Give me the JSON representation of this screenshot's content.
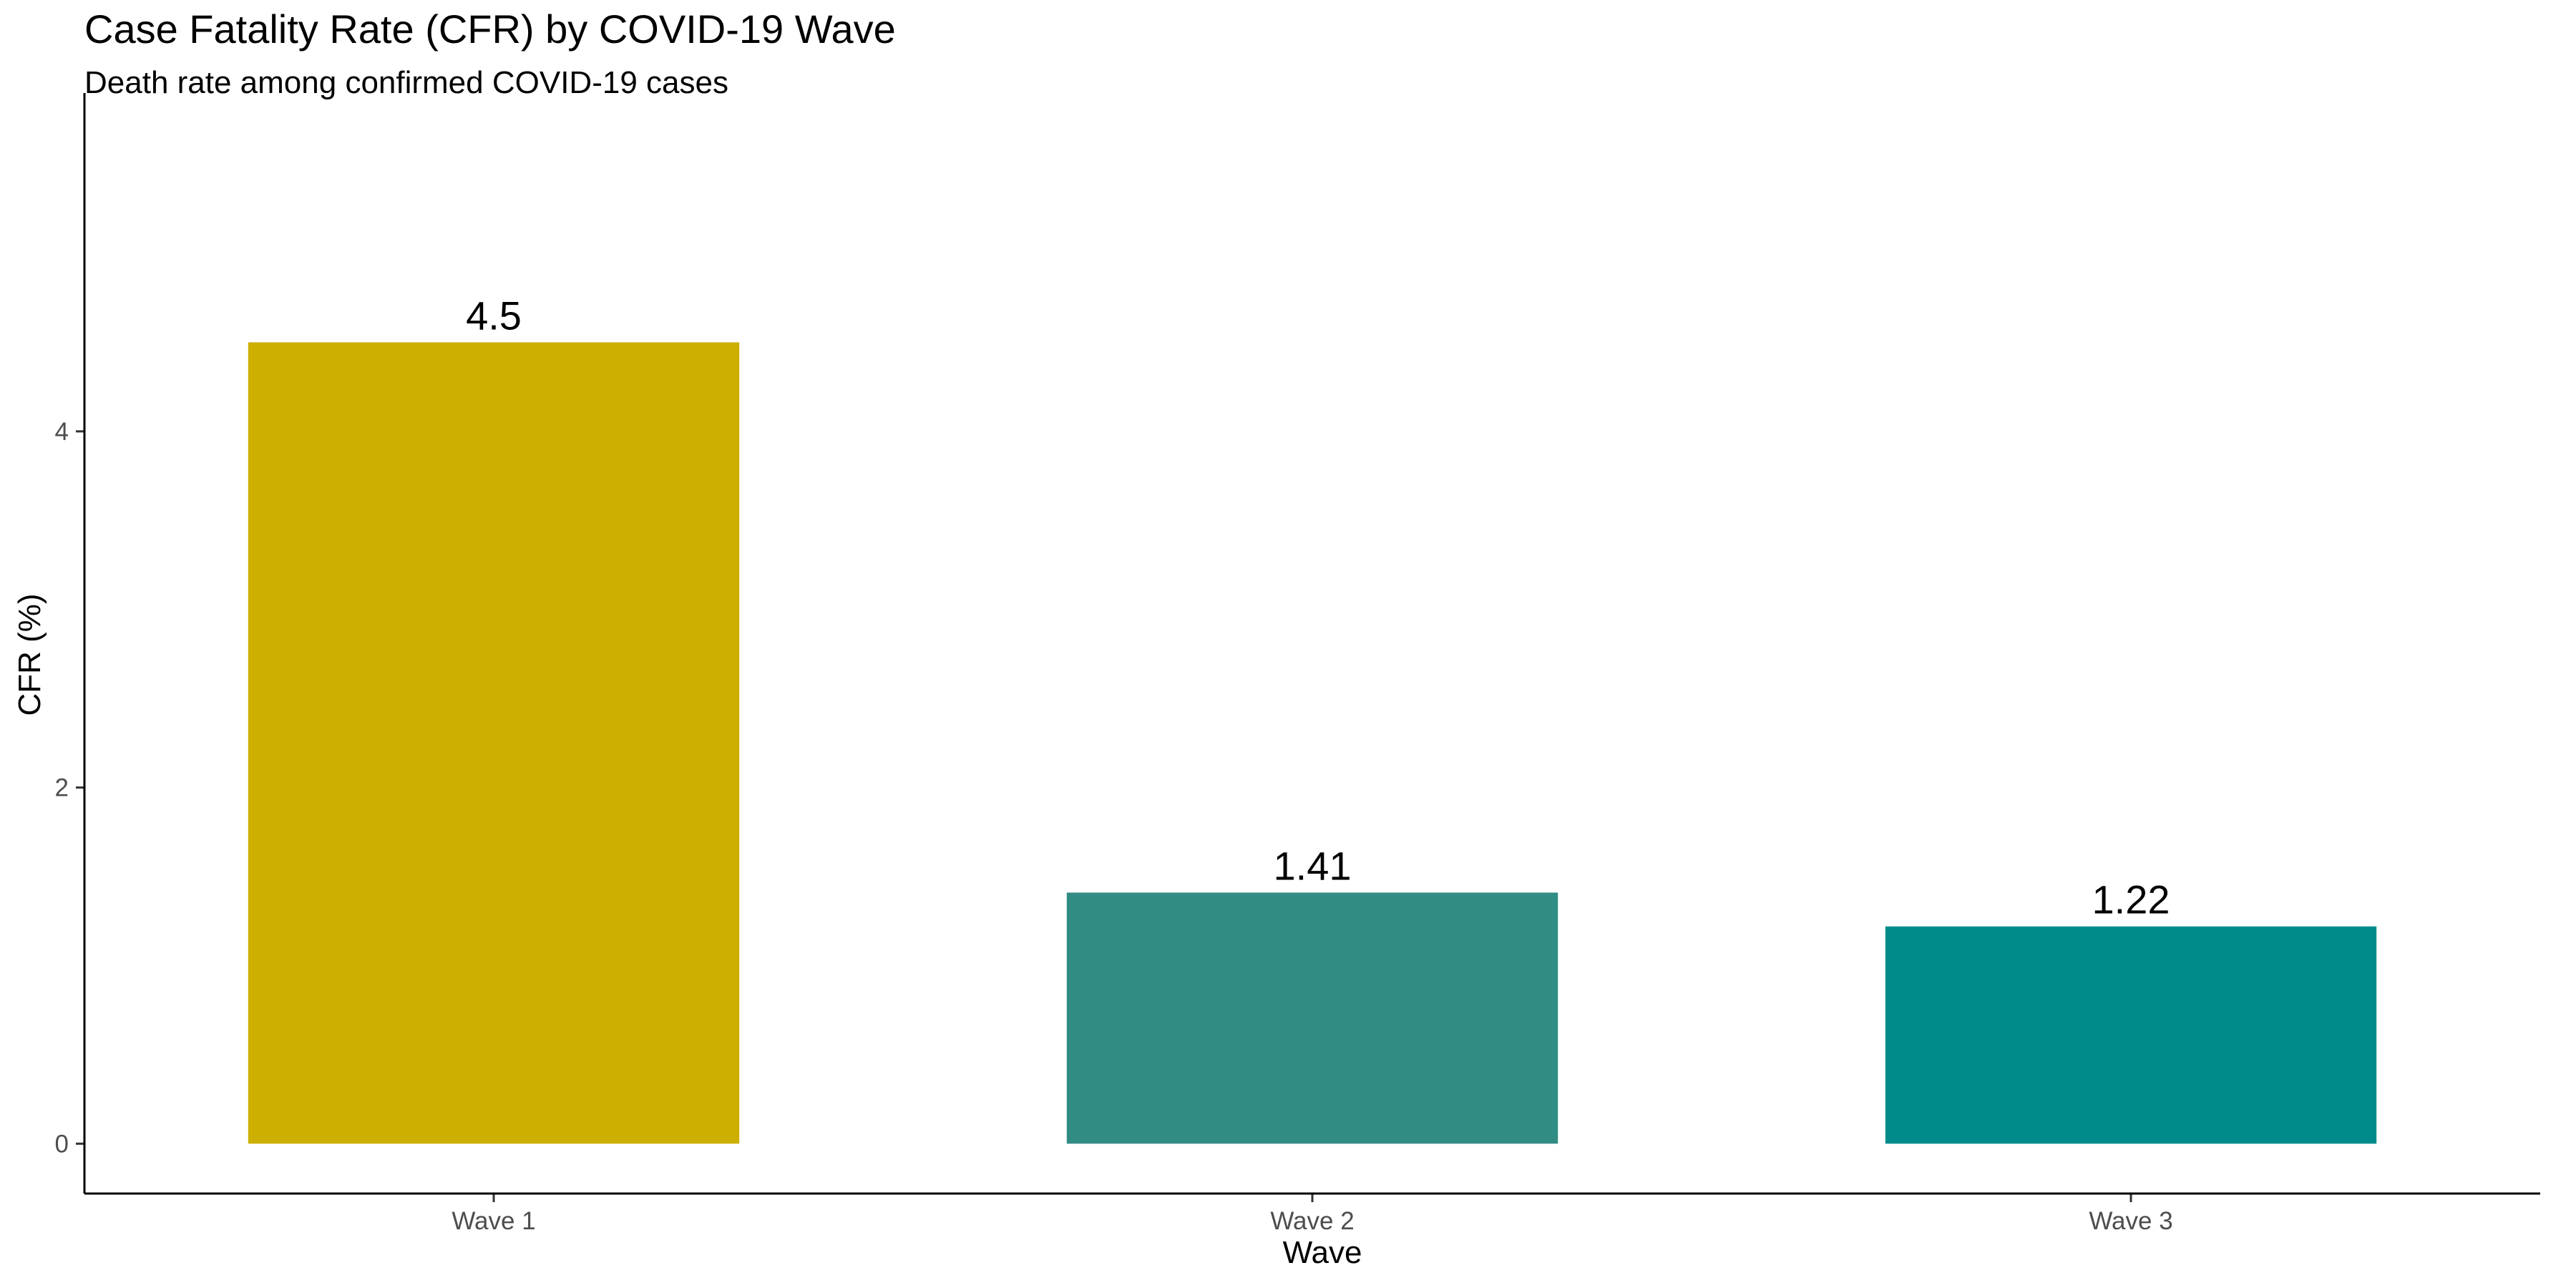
{
  "chart_data": {
    "type": "bar",
    "title": "Case Fatality Rate (CFR) by COVID-19 Wave",
    "subtitle": "Death rate among confirmed COVID-19 cases",
    "xlabel": "Wave",
    "ylabel": "CFR (%)",
    "categories": [
      "Wave 1",
      "Wave 2",
      "Wave 3"
    ],
    "values": [
      4.5,
      1.41,
      1.22
    ],
    "data_labels": [
      "4.5",
      "1.41",
      "1.22"
    ],
    "colors": [
      "#CCAF00",
      "#318C84",
      "#008B8B"
    ],
    "ylim": [
      -0.28,
      5.9
    ],
    "yticks": [
      0,
      2,
      4
    ],
    "grid": false,
    "legend": "none"
  }
}
